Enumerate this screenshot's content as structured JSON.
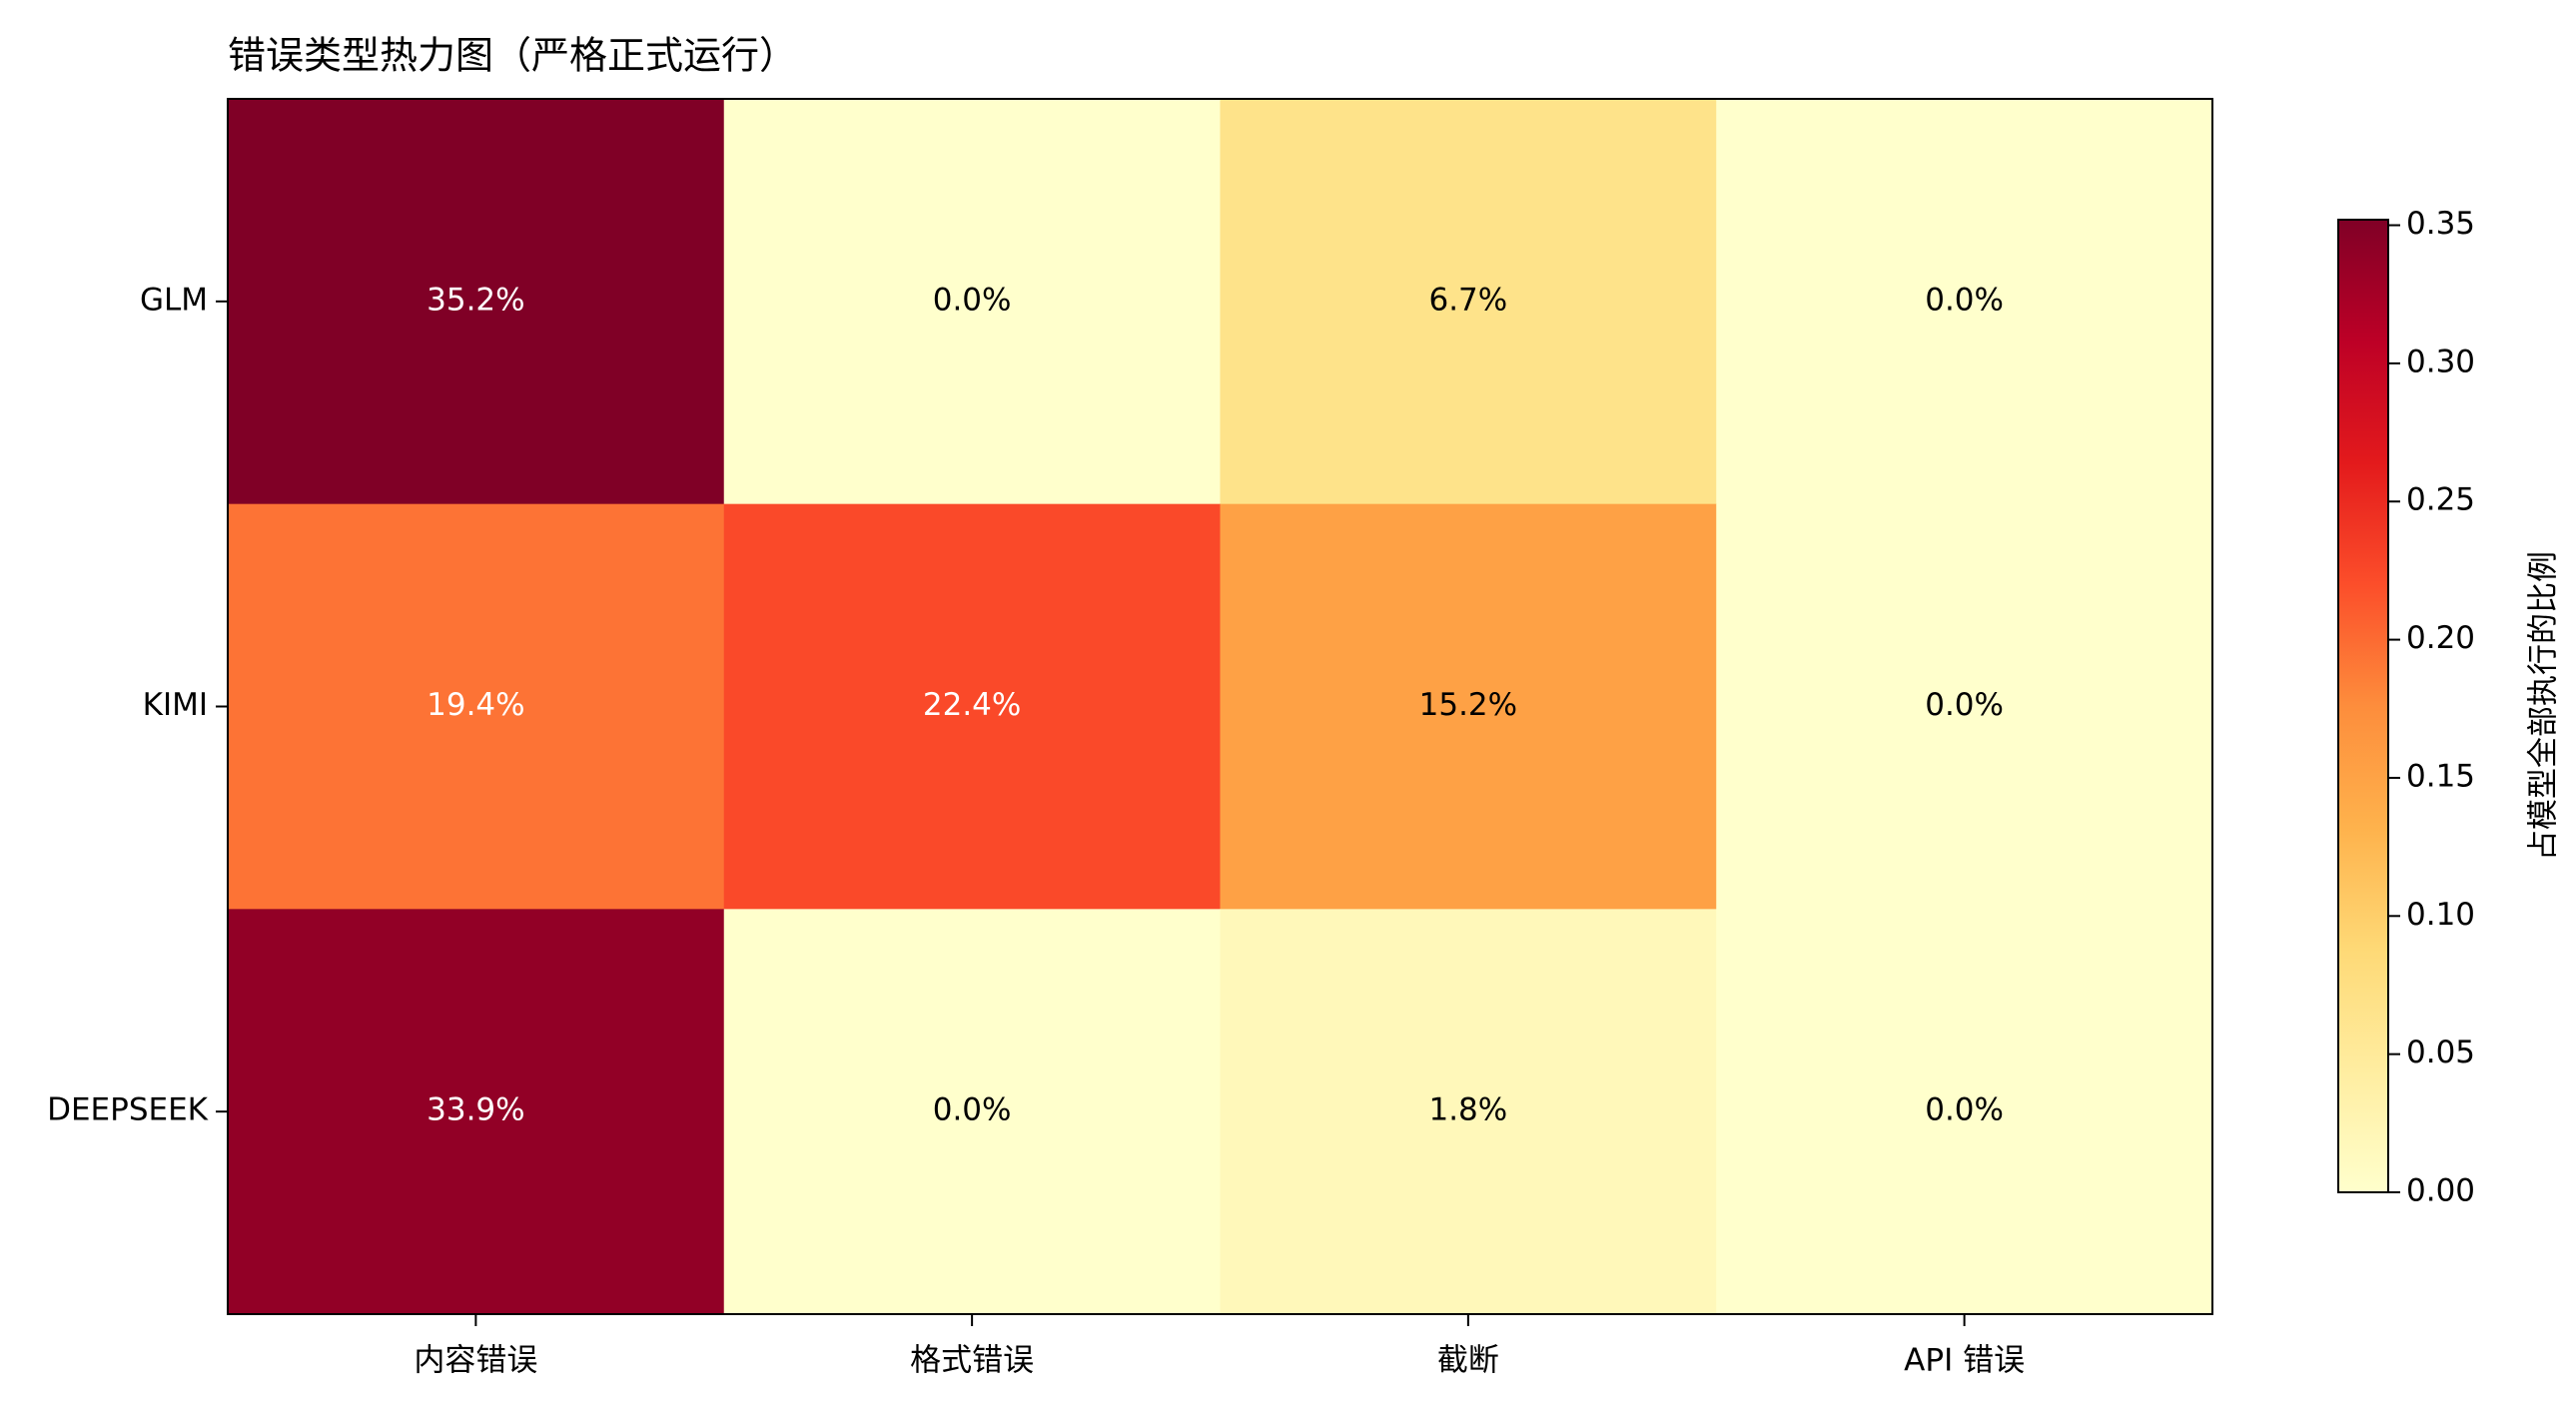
{
  "chart_data": {
    "type": "heatmap",
    "title": "错误类型热力图（严格正式运行）",
    "rows": [
      "GLM",
      "KIMI",
      "DEEPSEEK"
    ],
    "categories": [
      "内容错误",
      "格式错误",
      "截断",
      "API 错误"
    ],
    "values": [
      [
        0.352,
        0.0,
        0.067,
        0.0
      ],
      [
        0.194,
        0.224,
        0.152,
        0.0
      ],
      [
        0.339,
        0.0,
        0.018,
        0.0
      ]
    ],
    "value_labels": [
      [
        "35.2%",
        "0.0%",
        "6.7%",
        "0.0%"
      ],
      [
        "19.4%",
        "22.4%",
        "15.2%",
        "0.0%"
      ],
      [
        "33.9%",
        "0.0%",
        "1.8%",
        "0.0%"
      ]
    ],
    "colormap": "YlOrRd",
    "colorbar_label": "占模型全部执行的比例",
    "clim": [
      0,
      0.352
    ],
    "cticks": [
      {
        "value": 0,
        "label": "0.00"
      },
      {
        "value": 0.05,
        "label": "0.05"
      },
      {
        "value": 0.1,
        "label": "0.10"
      },
      {
        "value": 0.15,
        "label": "0.15"
      },
      {
        "value": 0.2,
        "label": "0.20"
      },
      {
        "value": 0.25,
        "label": "0.25"
      },
      {
        "value": 0.3,
        "label": "0.30"
      },
      {
        "value": 0.35,
        "label": "0.35"
      }
    ]
  }
}
